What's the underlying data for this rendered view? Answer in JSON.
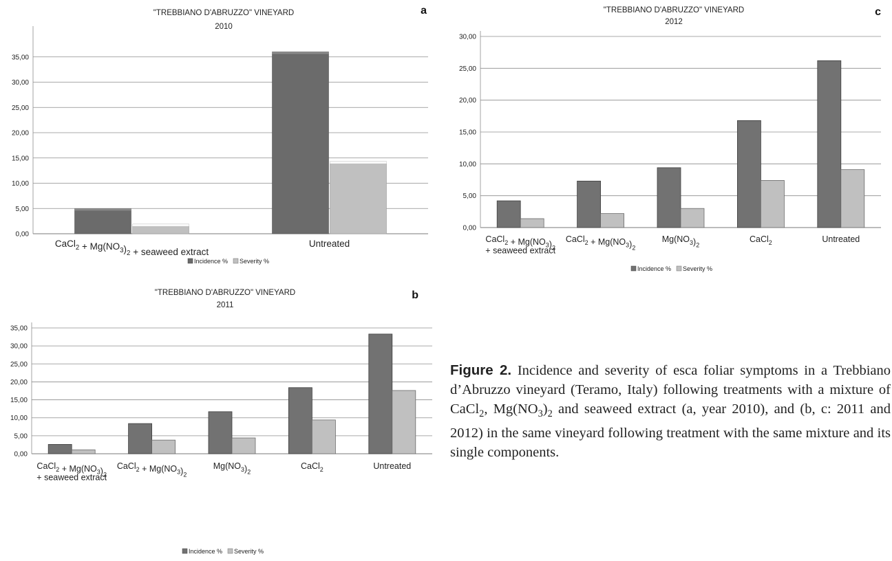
{
  "chart_data": [
    {
      "type": "bar",
      "panel_letter": "a",
      "title": "\"TREBBIANO D'ABRUZZO\" VINEYARD",
      "subtitle": "2010",
      "categories": [
        "CaCl₂ + Mg(NO₃)₂ +  seaweed extract",
        "Untreated"
      ],
      "series": [
        {
          "name": "Incidence %",
          "values": [
            5.0,
            36.0
          ]
        },
        {
          "name": "Severity %",
          "values": [
            1.9,
            14.3
          ]
        }
      ],
      "ylim": [
        0,
        40
      ],
      "yticks": [
        "0,00",
        "5,00",
        "10,00",
        "15,00",
        "20,00",
        "25,00",
        "30,00",
        "35,00"
      ],
      "grid": true,
      "style": "3d",
      "legend_placement": "bottom",
      "colors": [
        "#6b6b6b",
        "#c0c0c0"
      ]
    },
    {
      "type": "bar",
      "panel_letter": "b",
      "title": "\"TREBBIANO D'ABRUZZO\" VINEYARD",
      "subtitle": "2011",
      "categories": [
        "CaCl₂ + Mg(NO₃)₂|+ seaweed extract",
        "CaCl₂ + Mg(NO₃)₂",
        "Mg(NO₃)₂",
        "CaCl₂",
        "Untreated"
      ],
      "series": [
        {
          "name": "Incidence %",
          "values": [
            2.6,
            8.4,
            11.7,
            18.4,
            33.3
          ]
        },
        {
          "name": "Severity %",
          "values": [
            1.1,
            3.8,
            4.4,
            9.4,
            17.6
          ]
        }
      ],
      "ylim": [
        0,
        35
      ],
      "yticks": [
        "0,00",
        "5,00",
        "10,00",
        "15,00",
        "20,00",
        "25,00",
        "30,00",
        "35,00"
      ],
      "grid": true,
      "style": "flat",
      "legend_placement": "bottom",
      "colors": [
        "#727272",
        "#c0c0c0"
      ]
    },
    {
      "type": "bar",
      "panel_letter": "c",
      "title": "\"TREBBIANO D'ABRUZZO\" VINEYARD",
      "subtitle": "2012",
      "categories": [
        "CaCl₂ + Mg(NO₃)₂|+ seaweed extract",
        "CaCl₂ + Mg(NO₃)₂",
        "Mg(NO₃)₂",
        "CaCl₂",
        "Untreated"
      ],
      "series": [
        {
          "name": "Incidence %",
          "values": [
            4.2,
            7.3,
            9.4,
            16.8,
            26.2
          ]
        },
        {
          "name": "Severity %",
          "values": [
            1.4,
            2.2,
            3.0,
            7.4,
            9.1
          ]
        }
      ],
      "ylim": [
        0,
        30
      ],
      "yticks": [
        "0,00",
        "5,00",
        "10,00",
        "15,00",
        "20,00",
        "25,00",
        "30,00"
      ],
      "grid": true,
      "style": "flat",
      "legend_placement": "bottom",
      "colors": [
        "#727272",
        "#c0c0c0"
      ]
    }
  ],
  "caption": {
    "label": "Figure 2.",
    "text": "Incidence and severity of esca foliar symptoms in a Trebbiano d’Abruzzo vineyard  (Teramo, Italy) following treatments with a mixture of CaCl₂, Mg(NO₃)₂ and seaweed extract (a, year  2010),  and (b, c: 2011 and 2012) in the same vineyard following treatment with the same mixture and its single components."
  }
}
